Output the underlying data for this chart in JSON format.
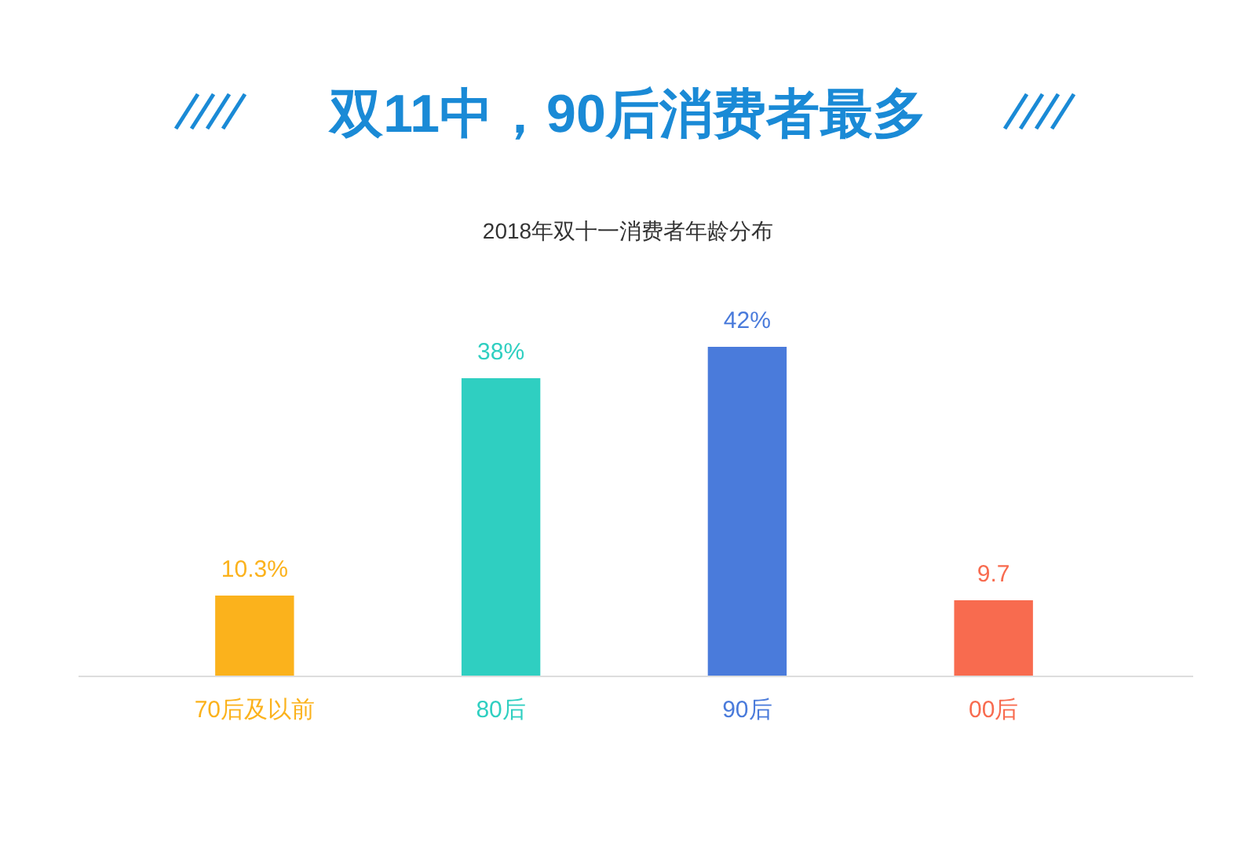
{
  "chart_data": {
    "type": "bar",
    "title": "双11中，90后消费者最多",
    "subtitle": "2018年双十一消费者年龄分布",
    "categories": [
      "70后及以前",
      "80后",
      "90后",
      "00后"
    ],
    "values": [
      10.3,
      38,
      42,
      9.7
    ],
    "colors": [
      "#fbb21c",
      "#2fcfc1",
      "#4a7bdb",
      "#f86b4f"
    ],
    "value_labels": [
      "10.3%",
      "38%",
      "42%",
      "9.7"
    ]
  }
}
